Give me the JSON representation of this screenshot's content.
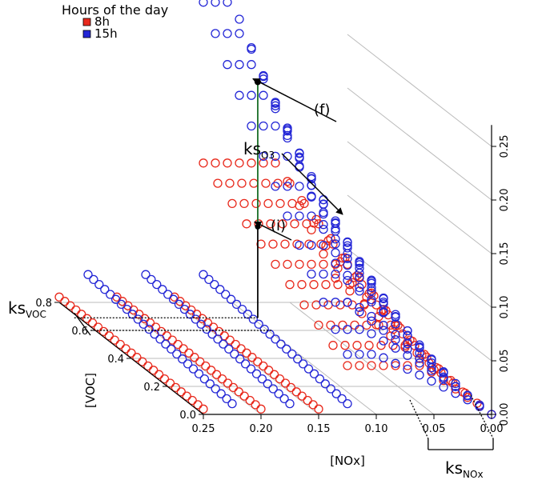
{
  "chart_data": {
    "type": "scatter",
    "title": "",
    "legend": {
      "title": "Hours of the day",
      "placement": "top-left",
      "entries": [
        {
          "label": "8h",
          "color": "#e8291c"
        },
        {
          "label": "15h",
          "color": "#2326d6"
        }
      ]
    },
    "axes": {
      "x": {
        "label": "[NOx]",
        "ticks": [
          "0.25",
          "0.20",
          "0.15",
          "0.10",
          "0.05",
          "0.00"
        ],
        "range": [
          0.25,
          0.0
        ]
      },
      "y": {
        "label": "[VOC]",
        "ticks": [
          "0.0",
          "0.2",
          "0.4",
          "0.6",
          "0.8"
        ],
        "range": [
          0.0,
          0.8
        ]
      },
      "z": {
        "label": "",
        "ticks": [
          "0.00",
          "0.05",
          "0.10",
          "0.15",
          "0.20",
          "0.25"
        ],
        "range": [
          0.0,
          0.25
        ]
      }
    },
    "grid": true,
    "series": [
      {
        "name": "8h",
        "color": "#e8291c",
        "shape": "ring",
        "lines_nox": [
          0.25,
          0.2,
          0.15
        ],
        "grid_nox_range": [
          0.0,
          0.125
        ],
        "grid_voc_range": [
          0.0,
          0.8
        ],
        "peak_z": 0.13
      },
      {
        "name": "15h",
        "color": "#2326d6",
        "shape": "ring",
        "lines_nox": [
          0.225,
          0.175,
          0.125
        ],
        "grid_nox_range": [
          0.0,
          0.125
        ],
        "grid_voc_range": [
          0.0,
          0.8
        ],
        "peak_z": 0.28
      }
    ],
    "annotations": {
      "point_i": {
        "label": "(i)",
        "nox": 0.095,
        "voc": 0.69,
        "z": 0.0
      },
      "point_f": {
        "label": "(f)",
        "nox": 0.095,
        "voc": 0.69,
        "z": 0.22
      },
      "ks_o3": {
        "label": "ks",
        "sub": "O3"
      },
      "ks_voc": {
        "label": "ks",
        "sub": "VOC"
      },
      "ks_nox": {
        "label": "ks",
        "sub": "NOx"
      }
    },
    "colors": {
      "red": "#e8291c",
      "blue": "#2326d6",
      "green": "#1a7a2a",
      "grid": "#bbbbbb"
    }
  }
}
